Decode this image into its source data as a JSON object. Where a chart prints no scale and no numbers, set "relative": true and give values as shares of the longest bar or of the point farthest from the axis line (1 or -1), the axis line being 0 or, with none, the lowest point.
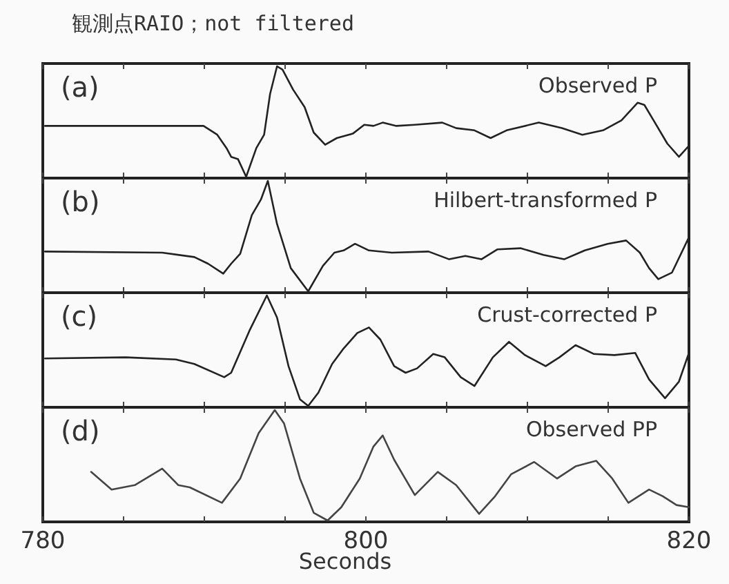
{
  "chart_data": [
    {
      "type": "line",
      "title": "観測点RAIO；not filtered",
      "annotations": [
        "(a)",
        "Observed P"
      ],
      "relative": true,
      "tick_labels": false,
      "xlim": [
        780,
        820
      ],
      "xticks": [
        {
          "value": 780,
          "label": null
        },
        {
          "value": 785,
          "label": null
        },
        {
          "value": 790,
          "label": null
        },
        {
          "value": 795,
          "label": null
        },
        {
          "value": 800,
          "label": null
        },
        {
          "value": 805,
          "label": null
        },
        {
          "value": 810,
          "label": null
        },
        {
          "value": 815,
          "label": null
        },
        {
          "value": 820,
          "label": null
        }
      ],
      "series": [
        {
          "color": "#222222",
          "x": [
            780.14,
            789.95,
            790.8,
            791.37,
            791.66,
            792.08,
            792.59,
            793.22,
            793.7,
            794.07,
            794.5,
            794.84,
            795.49,
            796.21,
            796.77,
            797.48,
            798.2,
            799.19,
            799.9,
            800.47,
            801.04,
            801.89,
            803.03,
            804.73,
            805.59,
            806.72,
            807.72,
            808.71,
            810.7,
            812.13,
            813.4,
            814.68,
            815.82,
            816.82,
            817.24,
            817.81,
            818.66,
            819.38,
            820
          ],
          "values": [
            0.46,
            0.46,
            0.38,
            0.26,
            0.18,
            0.16,
            0,
            0.26,
            0.38,
            0.75,
            1,
            0.97,
            0.79,
            0.63,
            0.4,
            0.29,
            0.35,
            0.39,
            0.47,
            0.46,
            0.49,
            0.46,
            0.47,
            0.49,
            0.44,
            0.42,
            0.35,
            0.42,
            0.49,
            0.44,
            0.38,
            0.42,
            0.51,
            0.67,
            0.65,
            0.51,
            0.3,
            0.18,
            0.28
          ]
        }
      ]
    },
    {
      "type": "line",
      "annotations": [
        "(b)",
        "Hilbert-transformed P"
      ],
      "relative": true,
      "tick_labels": false,
      "xlim": [
        780,
        820
      ],
      "xticks": [
        {
          "value": 780,
          "label": null
        },
        {
          "value": 785,
          "label": null
        },
        {
          "value": 790,
          "label": null
        },
        {
          "value": 795,
          "label": null
        },
        {
          "value": 800,
          "label": null
        },
        {
          "value": 805,
          "label": null
        },
        {
          "value": 810,
          "label": null
        },
        {
          "value": 815,
          "label": null
        },
        {
          "value": 820,
          "label": null
        }
      ],
      "series": [
        {
          "color": "#222222",
          "x": [
            780.14,
            787.39,
            789.38,
            790.23,
            791.17,
            791.66,
            792.22,
            792.94,
            793.5,
            793.93,
            794.5,
            795.35,
            796.43,
            797.34,
            798.05,
            798.62,
            799.33,
            800.19,
            801.61,
            803.88,
            805.16,
            806.16,
            807.15,
            808.15,
            809.57,
            810.99,
            812.27,
            813.55,
            814.97,
            816.11,
            816.96,
            817.53,
            818.1,
            818.95,
            820
          ],
          "values": [
            0.36,
            0.35,
            0.31,
            0.25,
            0.16,
            0.25,
            0.34,
            0.69,
            0.83,
            1,
            0.61,
            0.21,
            0,
            0.23,
            0.35,
            0.37,
            0.43,
            0.37,
            0.35,
            0.36,
            0.29,
            0.32,
            0.29,
            0.38,
            0.39,
            0.33,
            0.29,
            0.37,
            0.43,
            0.46,
            0.35,
            0.21,
            0.11,
            0.17,
            0.49
          ]
        }
      ]
    },
    {
      "type": "line",
      "annotations": [
        "(c)",
        "Crust-corrected P"
      ],
      "relative": true,
      "tick_labels": false,
      "xlim": [
        780,
        820
      ],
      "xticks": [
        {
          "value": 780,
          "label": null
        },
        {
          "value": 785,
          "label": null
        },
        {
          "value": 790,
          "label": null
        },
        {
          "value": 795,
          "label": null
        },
        {
          "value": 800,
          "label": null
        },
        {
          "value": 805,
          "label": null
        },
        {
          "value": 810,
          "label": null
        },
        {
          "value": 815,
          "label": null
        },
        {
          "value": 820,
          "label": null
        }
      ],
      "series": [
        {
          "color": "#222222",
          "x": [
            780.14,
            785.12,
            788.24,
            789.38,
            791.23,
            791.66,
            792.79,
            793.87,
            794.5,
            795.21,
            795.92,
            796.43,
            797.06,
            797.91,
            798.62,
            799.47,
            800.19,
            800.9,
            801.75,
            802.46,
            803.17,
            804.17,
            804.88,
            805.87,
            806.72,
            807.86,
            808.86,
            809.85,
            811.13,
            811.98,
            812.98,
            814.12,
            815.39,
            816.67,
            817.53,
            818.52,
            819.38,
            820
          ],
          "values": [
            0.43,
            0.44,
            0.42,
            0.38,
            0.26,
            0.3,
            0.68,
            1,
            0.8,
            0.36,
            0.06,
            0,
            0.12,
            0.38,
            0.52,
            0.66,
            0.71,
            0.6,
            0.36,
            0.3,
            0.34,
            0.47,
            0.44,
            0.26,
            0.18,
            0.44,
            0.58,
            0.46,
            0.36,
            0.44,
            0.55,
            0.47,
            0.46,
            0.48,
            0.24,
            0.07,
            0.22,
            0.48
          ]
        }
      ]
    },
    {
      "type": "line",
      "annotations": [
        "(d)",
        "Observed PP"
      ],
      "xlabel": "Seconds",
      "relative": true,
      "tick_labels": "x",
      "xlim": [
        780,
        820
      ],
      "xticks": [
        780,
        {
          "value": 785,
          "label": null
        },
        {
          "value": 790,
          "label": null
        },
        {
          "value": 795,
          "label": null
        },
        800,
        {
          "value": 805,
          "label": null
        },
        {
          "value": 810,
          "label": null
        },
        {
          "value": 815,
          "label": null
        },
        820
      ],
      "series": [
        {
          "color": "#444444",
          "x": [
            782.99,
            784.26,
            785.69,
            787.39,
            788.39,
            789.1,
            791.09,
            792.22,
            793.36,
            794.36,
            794.93,
            795.92,
            796.77,
            797.63,
            798.48,
            799.62,
            800.47,
            801.04,
            801.75,
            803.03,
            804.45,
            805.59,
            807.01,
            808,
            809,
            810.42,
            811.84,
            812.98,
            814.26,
            815.25,
            816.25,
            817.53,
            818.38,
            819.23,
            820
          ],
          "values": [
            0.44,
            0.28,
            0.32,
            0.47,
            0.32,
            0.3,
            0.16,
            0.38,
            0.79,
            1,
            0.88,
            0.38,
            0.07,
            0,
            0.12,
            0.38,
            0.67,
            0.77,
            0.55,
            0.23,
            0.44,
            0.32,
            0.06,
            0.22,
            0.42,
            0.53,
            0.38,
            0.49,
            0.54,
            0.38,
            0.16,
            0.28,
            0.22,
            0.14,
            0.12
          ]
        }
      ]
    }
  ]
}
